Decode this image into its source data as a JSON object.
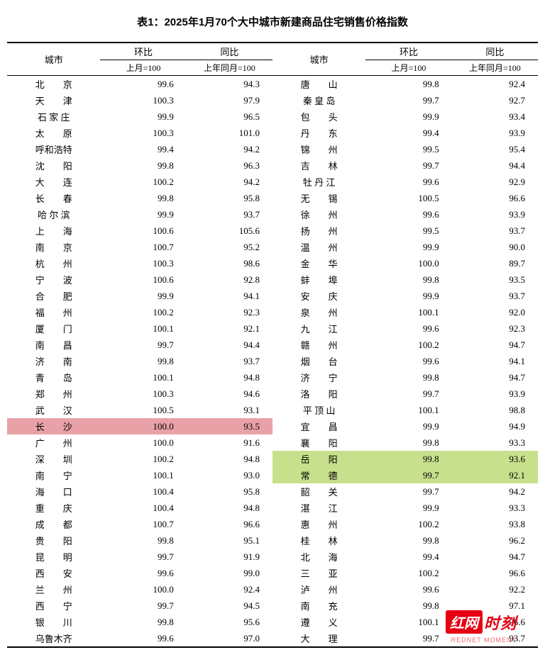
{
  "title": "表1：2025年1月70个大中城市新建商品住宅销售价格指数",
  "headers": {
    "city": "城市",
    "mom": "环比",
    "yoy": "同比",
    "mom_sub": "上月=100",
    "yoy_sub": "上年同月=100"
  },
  "highlights": {
    "pink_city": "长　　沙",
    "green_cities": [
      "岳　　阳",
      "常　　德"
    ],
    "pink_color": "#e9a1a8",
    "green_color": "#c7e08b"
  },
  "left": [
    {
      "city": "北　　京",
      "mom": "99.6",
      "yoy": "94.3"
    },
    {
      "city": "天　　津",
      "mom": "100.3",
      "yoy": "97.9"
    },
    {
      "city": "石 家 庄",
      "mom": "99.9",
      "yoy": "96.5"
    },
    {
      "city": "太　　原",
      "mom": "100.3",
      "yoy": "101.0"
    },
    {
      "city": "呼和浩特",
      "mom": "99.4",
      "yoy": "94.2"
    },
    {
      "city": "沈　　阳",
      "mom": "99.8",
      "yoy": "96.3"
    },
    {
      "city": "大　　连",
      "mom": "100.2",
      "yoy": "94.2"
    },
    {
      "city": "长　　春",
      "mom": "99.8",
      "yoy": "95.8"
    },
    {
      "city": "哈 尔 滨",
      "mom": "99.9",
      "yoy": "93.7"
    },
    {
      "city": "上　　海",
      "mom": "100.6",
      "yoy": "105.6"
    },
    {
      "city": "南　　京",
      "mom": "100.7",
      "yoy": "95.2"
    },
    {
      "city": "杭　　州",
      "mom": "100.3",
      "yoy": "98.6"
    },
    {
      "city": "宁　　波",
      "mom": "100.6",
      "yoy": "92.8"
    },
    {
      "city": "合　　肥",
      "mom": "99.9",
      "yoy": "94.1"
    },
    {
      "city": "福　　州",
      "mom": "100.2",
      "yoy": "92.3"
    },
    {
      "city": "厦　　门",
      "mom": "100.1",
      "yoy": "92.1"
    },
    {
      "city": "南　　昌",
      "mom": "99.7",
      "yoy": "94.4"
    },
    {
      "city": "济　　南",
      "mom": "99.8",
      "yoy": "93.7"
    },
    {
      "city": "青　　岛",
      "mom": "100.1",
      "yoy": "94.8"
    },
    {
      "city": "郑　　州",
      "mom": "100.3",
      "yoy": "94.6"
    },
    {
      "city": "武　　汉",
      "mom": "100.5",
      "yoy": "93.1"
    },
    {
      "city": "长　　沙",
      "mom": "100.0",
      "yoy": "93.5"
    },
    {
      "city": "广　　州",
      "mom": "100.0",
      "yoy": "91.6"
    },
    {
      "city": "深　　圳",
      "mom": "100.2",
      "yoy": "94.8"
    },
    {
      "city": "南　　宁",
      "mom": "100.1",
      "yoy": "93.0"
    },
    {
      "city": "海　　口",
      "mom": "100.4",
      "yoy": "95.8"
    },
    {
      "city": "重　　庆",
      "mom": "100.4",
      "yoy": "94.8"
    },
    {
      "city": "成　　都",
      "mom": "100.7",
      "yoy": "96.6"
    },
    {
      "city": "贵　　阳",
      "mom": "99.8",
      "yoy": "95.1"
    },
    {
      "city": "昆　　明",
      "mom": "99.7",
      "yoy": "91.9"
    },
    {
      "city": "西　　安",
      "mom": "99.6",
      "yoy": "99.0"
    },
    {
      "city": "兰　　州",
      "mom": "100.0",
      "yoy": "92.4"
    },
    {
      "city": "西　　宁",
      "mom": "99.7",
      "yoy": "94.5"
    },
    {
      "city": "银　　川",
      "mom": "99.8",
      "yoy": "95.6"
    },
    {
      "city": "乌鲁木齐",
      "mom": "99.6",
      "yoy": "97.0"
    }
  ],
  "right": [
    {
      "city": "唐　　山",
      "mom": "99.8",
      "yoy": "92.4"
    },
    {
      "city": "秦 皇 岛",
      "mom": "99.7",
      "yoy": "92.7"
    },
    {
      "city": "包　　头",
      "mom": "99.9",
      "yoy": "93.4"
    },
    {
      "city": "丹　　东",
      "mom": "99.4",
      "yoy": "93.9"
    },
    {
      "city": "锦　　州",
      "mom": "99.5",
      "yoy": "95.4"
    },
    {
      "city": "吉　　林",
      "mom": "99.7",
      "yoy": "94.4"
    },
    {
      "city": "牡 丹 江",
      "mom": "99.6",
      "yoy": "92.9"
    },
    {
      "city": "无　　锡",
      "mom": "100.5",
      "yoy": "96.6"
    },
    {
      "city": "徐　　州",
      "mom": "99.6",
      "yoy": "93.9"
    },
    {
      "city": "扬　　州",
      "mom": "99.5",
      "yoy": "93.7"
    },
    {
      "city": "温　　州",
      "mom": "99.9",
      "yoy": "90.0"
    },
    {
      "city": "金　　华",
      "mom": "100.0",
      "yoy": "89.7"
    },
    {
      "city": "蚌　　埠",
      "mom": "99.8",
      "yoy": "93.5"
    },
    {
      "city": "安　　庆",
      "mom": "99.9",
      "yoy": "93.7"
    },
    {
      "city": "泉　　州",
      "mom": "100.1",
      "yoy": "92.0"
    },
    {
      "city": "九　　江",
      "mom": "99.6",
      "yoy": "92.3"
    },
    {
      "city": "赣　　州",
      "mom": "100.2",
      "yoy": "94.7"
    },
    {
      "city": "烟　　台",
      "mom": "99.6",
      "yoy": "94.1"
    },
    {
      "city": "济　　宁",
      "mom": "99.8",
      "yoy": "94.7"
    },
    {
      "city": "洛　　阳",
      "mom": "99.7",
      "yoy": "93.9"
    },
    {
      "city": "平 顶 山",
      "mom": "100.1",
      "yoy": "98.8"
    },
    {
      "city": "宜　　昌",
      "mom": "99.9",
      "yoy": "94.9"
    },
    {
      "city": "襄　　阳",
      "mom": "99.8",
      "yoy": "93.3"
    },
    {
      "city": "岳　　阳",
      "mom": "99.8",
      "yoy": "93.6"
    },
    {
      "city": "常　　德",
      "mom": "99.7",
      "yoy": "92.1"
    },
    {
      "city": "韶　　关",
      "mom": "99.7",
      "yoy": "94.2"
    },
    {
      "city": "湛　　江",
      "mom": "99.9",
      "yoy": "93.3"
    },
    {
      "city": "惠　　州",
      "mom": "100.2",
      "yoy": "93.8"
    },
    {
      "city": "桂　　林",
      "mom": "99.8",
      "yoy": "96.2"
    },
    {
      "city": "北　　海",
      "mom": "99.4",
      "yoy": "94.7"
    },
    {
      "city": "三　　亚",
      "mom": "100.2",
      "yoy": "96.6"
    },
    {
      "city": "泸　　州",
      "mom": "99.6",
      "yoy": "92.2"
    },
    {
      "city": "南　　充",
      "mom": "99.8",
      "yoy": "97.1"
    },
    {
      "city": "遵　　义",
      "mom": "100.1",
      "yoy": "96.6"
    },
    {
      "city": "大　　理",
      "mom": "99.7",
      "yoy": "93.7"
    }
  ],
  "watermark": {
    "box": "红网",
    "text": "时刻",
    "sub": "REDNET MOMENT"
  }
}
